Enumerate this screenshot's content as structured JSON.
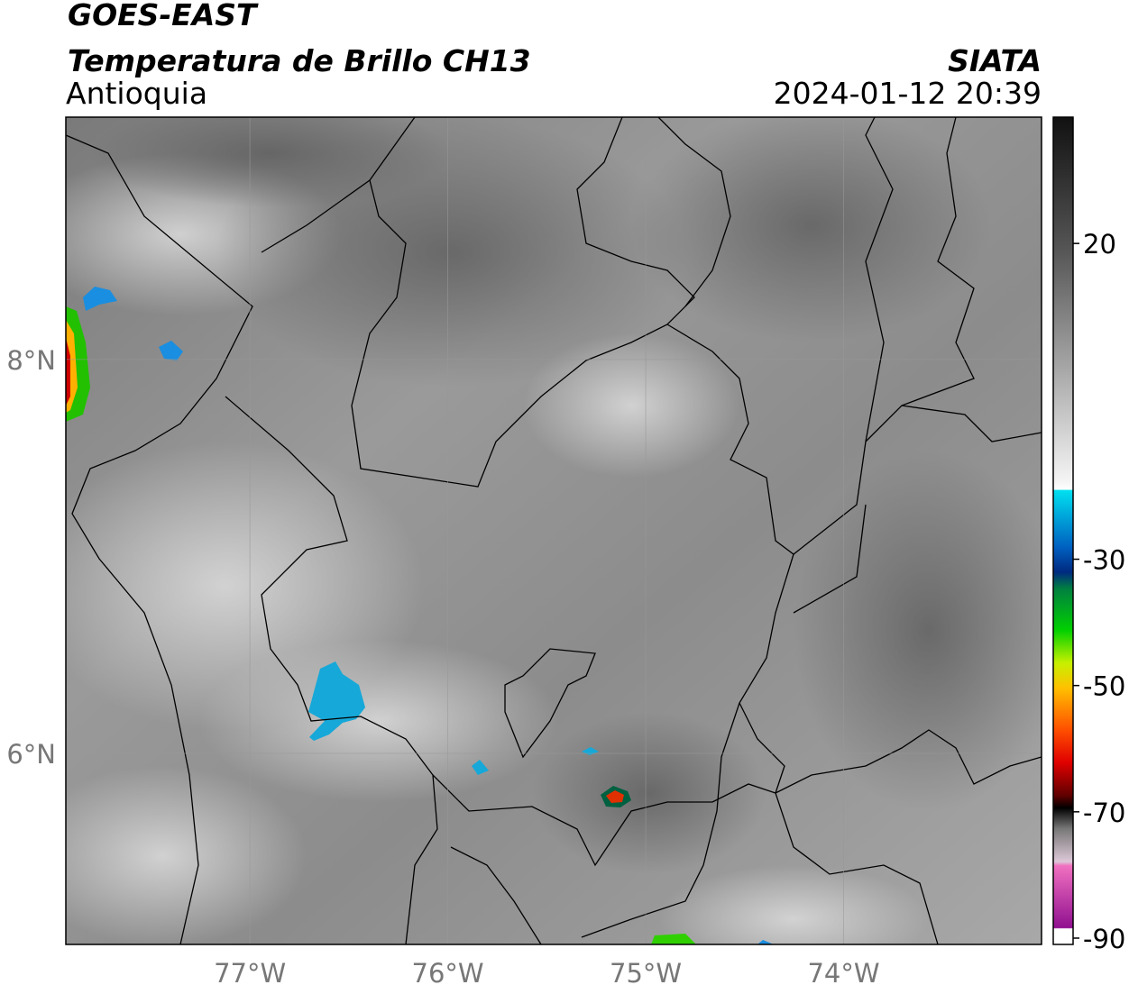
{
  "map": {
    "title": "GOES-EAST",
    "subtitle": "Temperatura de Brillo CH13",
    "region": "Antioquia",
    "source": "SIATA",
    "timestamp": "2024-01-12 20:39",
    "xlim": [
      -77.93,
      -73
    ],
    "ylim": [
      5.03,
      9.23
    ],
    "xticks": [
      {
        "value": -77,
        "label": "77°W"
      },
      {
        "value": -76,
        "label": "76°W"
      },
      {
        "value": -75,
        "label": "75°W"
      },
      {
        "value": -74,
        "label": "74°W"
      }
    ],
    "yticks": [
      {
        "value": 8,
        "label": "8°N"
      },
      {
        "value": 6,
        "label": "6°N"
      }
    ],
    "grid": true,
    "colorbar": {
      "lim": [
        -91,
        40
      ],
      "ticks": [
        20,
        -30,
        -50,
        -70,
        -90
      ]
    }
  }
}
